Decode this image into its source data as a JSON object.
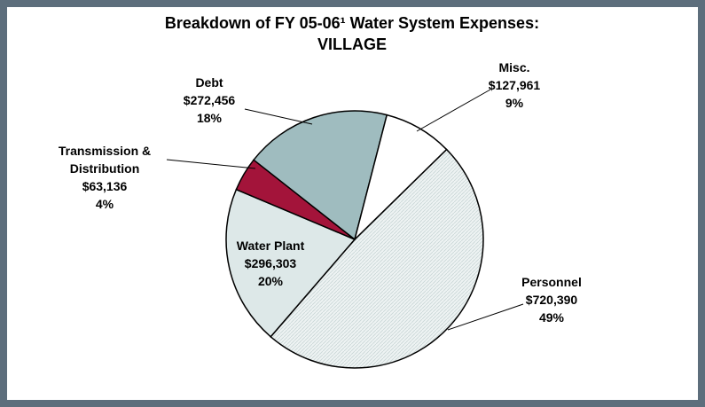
{
  "chart_data": {
    "type": "pie",
    "title": "Breakdown of FY 05-06¹ Water System Expenses:",
    "subtitle": "VILLAGE",
    "categories": [
      "Personnel",
      "Water Plant",
      "Transmission & Distribution",
      "Debt",
      "Misc."
    ],
    "values": [
      720390,
      296303,
      63136,
      272456,
      127961
    ],
    "value_labels": [
      "$720,390",
      "$296,303",
      "$63,136",
      "$272,456",
      "$127,961"
    ],
    "percent_labels": [
      "49%",
      "20%",
      "4%",
      "18%",
      "9%"
    ],
    "colors": [
      "#e9efef",
      "#dde8e8",
      "#a3143a",
      "#9fbcbf",
      "#ffffff"
    ]
  }
}
